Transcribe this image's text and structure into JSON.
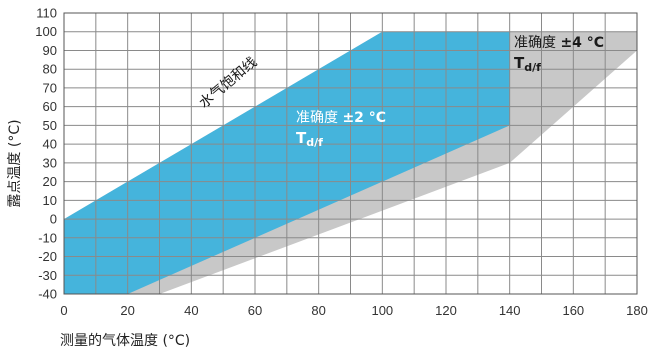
{
  "chart_data": {
    "type": "area",
    "xlabel": "测量的气体温度 (°C)",
    "ylabel": "露点温度 (°C)",
    "xlim": [
      0,
      180
    ],
    "ylim": [
      -40,
      110
    ],
    "x_ticks": [
      0,
      20,
      40,
      60,
      80,
      100,
      120,
      140,
      160,
      180
    ],
    "y_ticks": [
      110,
      100,
      90,
      80,
      70,
      60,
      50,
      40,
      30,
      20,
      10,
      0,
      -10,
      -20,
      -30,
      -40
    ],
    "grid": true,
    "regions": [
      {
        "label_prefix": "准确度 ",
        "label_value": "±4 °C",
        "label_sub_main": "T",
        "label_sub": "d/f",
        "color": "#c8c8c8",
        "polygon": [
          [
            30,
            -40
          ],
          [
            140,
            30
          ],
          [
            180,
            90
          ],
          [
            180,
            100
          ],
          [
            100,
            100
          ],
          [
            0,
            0
          ],
          [
            0,
            -40
          ]
        ]
      },
      {
        "label_prefix": "准确度 ",
        "label_value": "±2 °C",
        "label_sub_main": "T",
        "label_sub": "d/f",
        "color": "#45b4dc",
        "polygon": [
          [
            0,
            -40
          ],
          [
            20,
            -40
          ],
          [
            140,
            50
          ],
          [
            140,
            100
          ],
          [
            100,
            100
          ],
          [
            0,
            0
          ]
        ]
      }
    ],
    "annotations": [
      {
        "text": "水气饱和线",
        "x": 44,
        "y": 59,
        "angle": -40
      }
    ]
  }
}
